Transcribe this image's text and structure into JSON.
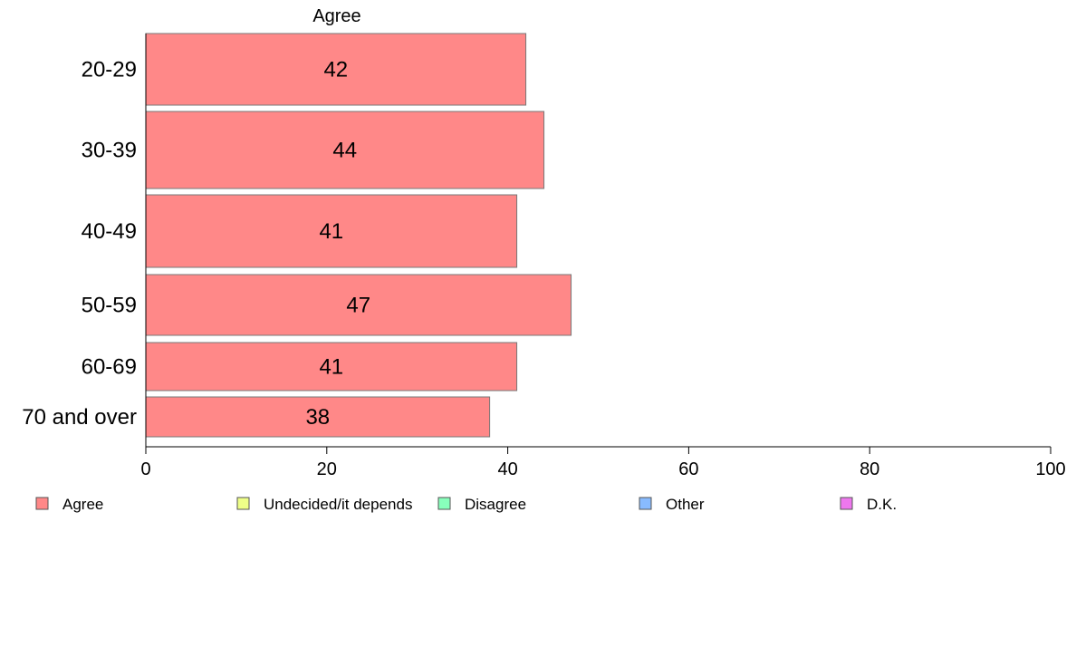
{
  "chart_data": {
    "type": "bar",
    "orientation": "horizontal",
    "title": "Agree",
    "categories": [
      "20-29",
      "30-39",
      "40-49",
      "50-59",
      "60-69",
      "70 and over"
    ],
    "series": [
      {
        "name": "Agree",
        "values": [
          42,
          44,
          41,
          47,
          41,
          38
        ],
        "color": "#ff8888"
      }
    ],
    "xlim": [
      0,
      100
    ],
    "xticks": [
      0,
      20,
      40,
      60,
      80,
      100
    ],
    "grid": false,
    "legend_position": "bottom",
    "legend": [
      {
        "label": "Agree",
        "color": "#ff8888"
      },
      {
        "label": "Undecided/it depends",
        "color": "#eeff88"
      },
      {
        "label": "Disagree",
        "color": "#88ffbb"
      },
      {
        "label": "Other",
        "color": "#88bbff"
      },
      {
        "label": "D.K.",
        "color": "#ee77ee"
      }
    ]
  }
}
